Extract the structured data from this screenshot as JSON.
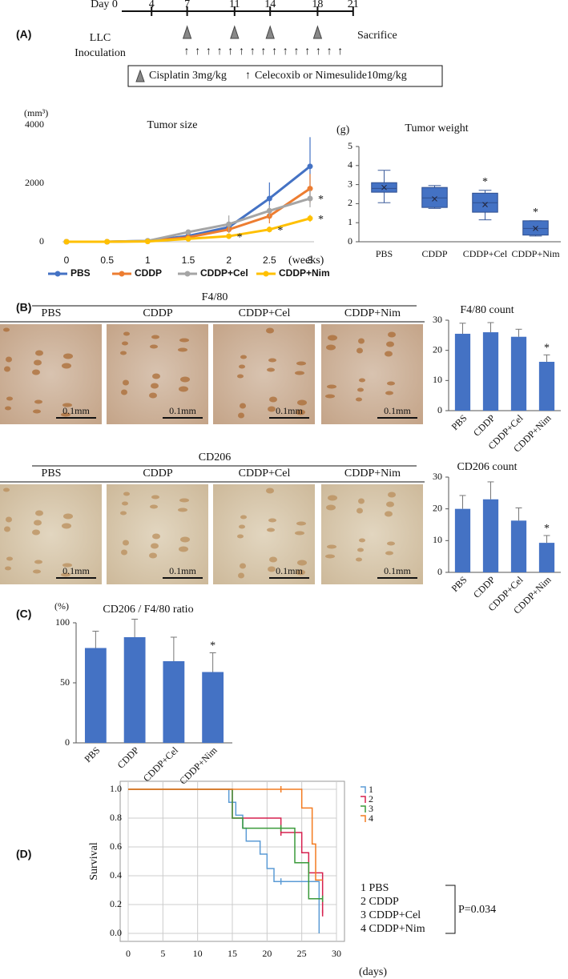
{
  "panels": [
    "(A)",
    "(B)",
    "(C)",
    "(D)"
  ],
  "timeline": {
    "days": [
      {
        "value": 0,
        "label": "Day 0"
      },
      4,
      7,
      11,
      14,
      18,
      21
    ],
    "cisplatin_days": [
      7,
      11,
      14,
      18
    ],
    "start_label": [
      "LLC",
      "Inoculation"
    ],
    "end_label": "Sacrifice",
    "legend": [
      "Cisplatin 3mg/kg",
      "Celecoxib or Nimesulide10mg/kg"
    ]
  },
  "histology": [
    {
      "title": "F4/80",
      "groups": [
        "PBS",
        "CDDP",
        "CDDP+Cel",
        "CDDP+Nim"
      ],
      "scale": "0.1mm"
    },
    {
      "title": "CD206",
      "groups": [
        "PBS",
        "CDDP",
        "CDDP+Cel",
        "CDDP+Nim"
      ],
      "scale": "0.1mm"
    }
  ],
  "chart_data": [
    {
      "type": "line",
      "title": "Tumor size",
      "ylabel": "(mm³)",
      "xlabel": "(weeks)",
      "x": [
        0,
        0.5,
        1,
        1.5,
        2,
        2.5,
        3
      ],
      "xlim": [
        0,
        3
      ],
      "xticks": [
        0,
        0.5,
        1,
        1.5,
        2,
        2.5,
        3
      ],
      "ylim": [
        0,
        4000
      ],
      "yticks": [
        0,
        2000,
        4000
      ],
      "series": [
        {
          "name": "PBS",
          "color": "#4472c4",
          "values": [
            0,
            0,
            30,
            200,
            500,
            1480,
            2580
          ],
          "errors": [
            0,
            0,
            20,
            80,
            150,
            550,
            1000
          ]
        },
        {
          "name": "CDDP",
          "color": "#ed7d31",
          "values": [
            0,
            0,
            20,
            150,
            420,
            880,
            1820
          ],
          "errors": [
            0,
            0,
            10,
            60,
            120,
            250,
            500
          ]
        },
        {
          "name": "CDDP+Cel",
          "color": "#a5a5a5",
          "values": [
            0,
            0,
            30,
            330,
            600,
            1060,
            1480
          ],
          "errors": [
            0,
            0,
            30,
            80,
            300,
            200,
            300
          ]
        },
        {
          "name": "CDDP+Nim",
          "color": "#ffc000",
          "values": [
            0,
            0,
            10,
            100,
            190,
            420,
            800
          ],
          "errors": [
            0,
            0,
            5,
            50,
            60,
            100,
            120
          ]
        }
      ],
      "annotations": [
        {
          "text": "*",
          "x": 3,
          "y": 1480
        },
        {
          "text": "*",
          "x": 3,
          "y": 800
        },
        {
          "text": "*",
          "x": 2.5,
          "y": 420
        },
        {
          "text": "*",
          "x": 2,
          "y": 190
        }
      ]
    },
    {
      "type": "box",
      "title": "Tumor weight",
      "ylabel": "(g)",
      "categories": [
        "PBS",
        "CDDP",
        "CDDP+Cel",
        "CDDP+Nim"
      ],
      "color": "#4472c4",
      "ylim": [
        0,
        5
      ],
      "yticks": [
        0,
        1,
        2,
        3,
        4,
        5
      ],
      "boxes": [
        {
          "min": 2.05,
          "q1": 2.6,
          "median": 2.8,
          "q3": 3.1,
          "max": 3.75,
          "mean": 2.85
        },
        {
          "min": 1.75,
          "q1": 1.8,
          "median": 2.3,
          "q3": 2.85,
          "max": 2.95,
          "mean": 2.25
        },
        {
          "min": 1.15,
          "q1": 1.55,
          "median": 2.05,
          "q3": 2.55,
          "max": 2.7,
          "mean": 1.95
        },
        {
          "min": 0.3,
          "q1": 0.35,
          "median": 0.7,
          "q3": 1.1,
          "max": 1.1,
          "mean": 0.7
        }
      ],
      "annotations": [
        {
          "text": "*",
          "x": "CDDP+Cel"
        },
        {
          "text": "*",
          "x": "CDDP+Nim"
        }
      ]
    },
    {
      "type": "bar",
      "title": "F4/80 count",
      "categories": [
        "PBS",
        "CDDP",
        "CDDP+Cel",
        "CDDP+Nim"
      ],
      "color": "#4472c4",
      "values": [
        25.5,
        26,
        24.5,
        16.2
      ],
      "errors": [
        3.5,
        3.2,
        2.5,
        2.3
      ],
      "ylim": [
        0,
        30
      ],
      "yticks": [
        0,
        10,
        20,
        30
      ],
      "annotations": [
        {
          "text": "*",
          "x": "CDDP+Nim"
        }
      ]
    },
    {
      "type": "bar",
      "title": "CD206 count",
      "categories": [
        "PBS",
        "CDDP",
        "CDDP+Cel",
        "CDDP+Nim"
      ],
      "color": "#4472c4",
      "values": [
        20,
        23,
        16.3,
        9.3
      ],
      "errors": [
        4.2,
        5.5,
        4,
        2.3
      ],
      "ylim": [
        0,
        30
      ],
      "yticks": [
        0,
        10,
        20,
        30
      ],
      "annotations": [
        {
          "text": "*",
          "x": "CDDP+Nim"
        }
      ]
    },
    {
      "type": "bar",
      "title": "CD206 / F4/80 ratio",
      "ylabel": "(%)",
      "categories": [
        "PBS",
        "CDDP",
        "CDDP+Cel",
        "CDDP+Nim"
      ],
      "color": "#4472c4",
      "values": [
        79,
        88,
        68,
        59
      ],
      "errors": [
        14,
        15,
        20,
        16
      ],
      "ylim": [
        0,
        100
      ],
      "yticks": [
        0,
        50,
        100
      ],
      "annotations": [
        {
          "text": "*",
          "x": "CDDP+Nim"
        }
      ]
    },
    {
      "type": "step",
      "ylabel": "Survival",
      "xlabel": "(days)",
      "grid": true,
      "xlim": [
        0,
        30
      ],
      "xticks": [
        0,
        5,
        10,
        15,
        20,
        25,
        30
      ],
      "ylim": [
        0,
        1
      ],
      "yticks": [
        {
          "value": 0,
          "label": "0.0"
        },
        {
          "value": 0.2,
          "label": "0.2"
        },
        {
          "value": 0.4,
          "label": "0.4"
        },
        {
          "value": 0.6,
          "label": "0.6"
        },
        {
          "value": 0.8,
          "label": "0.8"
        },
        {
          "value": 1,
          "label": "1.0"
        }
      ],
      "series": [
        {
          "name": "1",
          "color": "#5b9bd5",
          "x": [
            0,
            14.5,
            15.5,
            16.5,
            17,
            19,
            20,
            21,
            27.5
          ],
          "values": [
            1,
            0.91,
            0.82,
            0.73,
            0.64,
            0.55,
            0.45,
            0.36,
            0
          ],
          "censored": [
            {
              "x": 22,
              "y": 0.36
            }
          ]
        },
        {
          "name": "2",
          "color": "#d6204e",
          "x": [
            0,
            15,
            22,
            25,
            26,
            28
          ],
          "values": [
            1,
            0.8,
            0.7,
            0.56,
            0.42,
            0.14
          ],
          "censored": [
            {
              "x": 22,
              "y": 0.7
            },
            {
              "x": 28,
              "y": 0.14
            }
          ]
        },
        {
          "name": "3",
          "color": "#3a9a3a",
          "x": [
            0,
            15,
            16.5,
            24,
            26,
            28
          ],
          "values": [
            1,
            0.8,
            0.73,
            0.49,
            0.24,
            0.24
          ],
          "censored": [
            {
              "x": 22,
              "y": 0.73
            },
            {
              "x": 28,
              "y": 0.24
            }
          ]
        },
        {
          "name": "4",
          "color": "#f47b20",
          "x": [
            0,
            25,
            26.5,
            27,
            28
          ],
          "values": [
            1,
            0.87,
            0.62,
            0.37,
            0.37
          ],
          "censored": [
            {
              "x": 22,
              "y": 1
            }
          ]
        }
      ],
      "group_legend": [
        "1 PBS",
        "2 CDDP",
        "3 CDDP+Cel",
        "4 CDDP+Nim"
      ],
      "p_value": "P=0.034"
    }
  ]
}
